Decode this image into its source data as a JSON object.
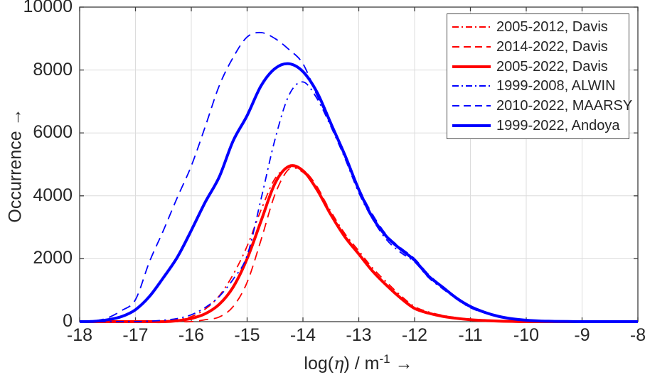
{
  "axes": {
    "x_ticks": [
      "-18",
      "-17",
      "-16",
      "-15",
      "-14",
      "-13",
      "-12",
      "-11",
      "-10",
      "-9",
      "-8"
    ],
    "y_ticks": [
      "0",
      "2000",
      "4000",
      "6000",
      "8000",
      "10000"
    ],
    "xlabel": {
      "prefix": "log(",
      "eta": "η",
      "mid": ") / m",
      "sup": "-1",
      "arrow": " →"
    },
    "ylabel": "Occurrence →"
  },
  "colors": {
    "red": "#ff0000",
    "blue": "#0000ff",
    "grid": "#dcdcdc",
    "axis_box": "#3c3c3c",
    "text": "#262626"
  },
  "chart_data": {
    "type": "line",
    "title": "",
    "xlabel": "log(eta) / m^-1",
    "ylabel": "Occurrence",
    "xlim": [
      -18,
      -8
    ],
    "ylim": [
      0,
      10000
    ],
    "grid": true,
    "legend_position": "top-right",
    "x_start": -18,
    "x_step": 0.25,
    "series": [
      {
        "name": "2005-2012, Davis",
        "color": "#ff0000",
        "style": "dashdot",
        "width": 1.8,
        "values": [
          0,
          0,
          0,
          0,
          0,
          0,
          20,
          60,
          160,
          400,
          820,
          1500,
          2400,
          3550,
          4550,
          4900,
          4750,
          4250,
          3500,
          2800,
          2250,
          1700,
          1250,
          830,
          480,
          310,
          200,
          125,
          75,
          40,
          20,
          8,
          0,
          0,
          0,
          0,
          0,
          0,
          0,
          0,
          0
        ]
      },
      {
        "name": "2014-2022, Davis",
        "color": "#ff0000",
        "style": "dashed",
        "width": 1.8,
        "values": [
          0,
          0,
          0,
          0,
          0,
          0,
          0,
          0,
          0,
          60,
          150,
          480,
          1250,
          2600,
          4050,
          4850,
          4820,
          4300,
          3450,
          2750,
          2180,
          1630,
          1180,
          780,
          440,
          280,
          175,
          110,
          62,
          35,
          17,
          7,
          0,
          0,
          0,
          0,
          0,
          0,
          0,
          0,
          0
        ]
      },
      {
        "name": "2005-2022, Davis",
        "color": "#ff0000",
        "style": "solid",
        "width": 4,
        "values": [
          0,
          0,
          0,
          0,
          0,
          0,
          0,
          30,
          100,
          250,
          550,
          1100,
          2000,
          3200,
          4400,
          4940,
          4800,
          4200,
          3400,
          2700,
          2150,
          1600,
          1150,
          750,
          420,
          270,
          170,
          105,
          60,
          35,
          18,
          8,
          0,
          0,
          0,
          0,
          0,
          0,
          0,
          0,
          0
        ]
      },
      {
        "name": "1999-2008, ALWIN",
        "color": "#0000ff",
        "style": "dashdot",
        "width": 1.8,
        "values": [
          0,
          0,
          0,
          0,
          0,
          15,
          45,
          100,
          220,
          450,
          800,
          1350,
          2100,
          3900,
          5800,
          7200,
          7620,
          7100,
          6200,
          5200,
          4100,
          3250,
          2600,
          2200,
          1900,
          1400,
          1050,
          720,
          440,
          280,
          155,
          85,
          40,
          18,
          8,
          0,
          0,
          0,
          0,
          0,
          0
        ]
      },
      {
        "name": "2010-2022, MAARSY",
        "color": "#0000ff",
        "style": "dashed",
        "width": 1.8,
        "values": [
          0,
          20,
          120,
          350,
          700,
          1900,
          2900,
          3950,
          4950,
          6200,
          7500,
          8400,
          9050,
          9190,
          9000,
          8650,
          8200,
          7200,
          6300,
          5300,
          4250,
          3400,
          2750,
          2350,
          2000,
          1500,
          1120,
          770,
          500,
          310,
          180,
          95,
          50,
          25,
          10,
          0,
          0,
          0,
          0,
          0,
          0
        ]
      },
      {
        "name": "1999-2022, Andoya",
        "color": "#0000ff",
        "style": "solid",
        "width": 4,
        "values": [
          0,
          10,
          60,
          160,
          380,
          800,
          1400,
          2050,
          2900,
          3800,
          4600,
          5750,
          6550,
          7500,
          8050,
          8200,
          7950,
          7300,
          6300,
          5300,
          4200,
          3300,
          2700,
          2300,
          1950,
          1450,
          1100,
          750,
          480,
          300,
          170,
          90,
          45,
          20,
          10,
          5,
          0,
          0,
          0,
          0,
          0
        ]
      }
    ]
  }
}
